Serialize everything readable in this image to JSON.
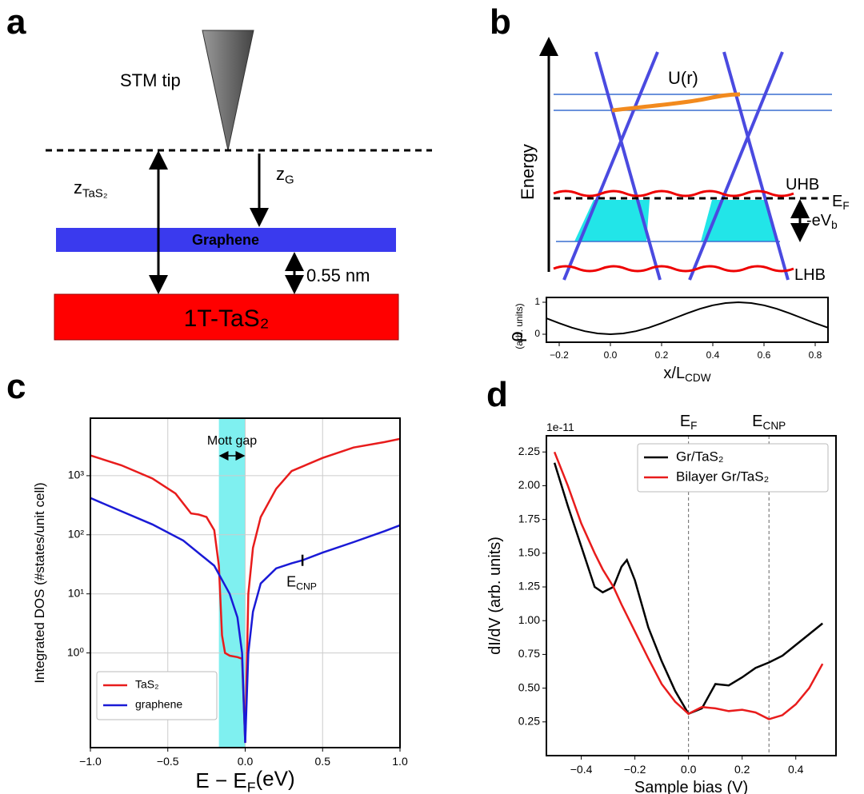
{
  "panel_a": {
    "label": "a",
    "tip": "STM tip",
    "z_tas2": [
      "z",
      "TaS₂"
    ],
    "z_g": [
      "z",
      "G"
    ],
    "graphene": "Graphene",
    "gap": "0.55 nm",
    "substrate": "1T-TaS₂"
  },
  "panel_b": {
    "label": "b",
    "potential": "U(r)",
    "energy": "Energy",
    "uhb": "UHB",
    "ef": [
      "E",
      "F"
    ],
    "bias": [
      "-eV",
      "b"
    ],
    "lhb": "LHB"
  },
  "panel_c": {
    "label": "c"
  },
  "panel_d": {
    "label": "d"
  },
  "chart_data": [
    {
      "type": "line",
      "xlabel": [
        "x/L",
        "CDW"
      ],
      "ylabel": "ρ",
      "ylabel_unit": "(arb. units)",
      "x": [
        -0.25,
        -0.2,
        -0.15,
        -0.1,
        -0.05,
        0,
        0.05,
        0.1,
        0.15,
        0.2,
        0.25,
        0.3,
        0.35,
        0.4,
        0.45,
        0.5,
        0.55,
        0.6,
        0.65,
        0.7,
        0.75,
        0.8,
        0.85
      ],
      "series": [
        {
          "color": "#000000",
          "values": [
            0.5,
            0.345,
            0.206,
            0.095,
            0.024,
            0,
            0.024,
            0.095,
            0.206,
            0.345,
            0.5,
            0.655,
            0.794,
            0.905,
            0.976,
            1,
            0.976,
            0.905,
            0.794,
            0.655,
            0.5,
            0.345,
            0.206
          ]
        }
      ],
      "xlim": [
        -0.25,
        0.85
      ],
      "ylim": [
        -0.25,
        1.15
      ],
      "xticks": [
        {
          "value": -0.2,
          "label": "−0.2"
        },
        {
          "value": 0,
          "label": "0.0"
        },
        0.2,
        0.4,
        0.6,
        0.8
      ],
      "yticks": [
        0,
        1
      ],
      "grid": false
    },
    {
      "type": "line",
      "xlabel": [
        "E − E",
        "F",
        "(eV)"
      ],
      "ylabel": "Integrated DOS  (#states/unit cell)",
      "yscale": "log",
      "grid": true,
      "xlim": [
        -1,
        1
      ],
      "ylim": [
        0.025,
        9400
      ],
      "xticks": [
        {
          "value": -1,
          "label": "−1.0"
        },
        {
          "value": -0.5,
          "label": "−0.5"
        },
        {
          "value": 0,
          "label": "0.0"
        },
        0.5,
        {
          "value": 1,
          "label": "1.0"
        }
      ],
      "yticks": [
        {
          "value": 1,
          "label": "10⁰"
        },
        {
          "value": 10,
          "label": "10¹"
        },
        {
          "value": 100,
          "label": "10²"
        },
        {
          "value": 1000,
          "label": "10³"
        }
      ],
      "shade": [
        -0.17,
        0
      ],
      "shade_color": "#7ff0f0",
      "shade_label": "Mott gap",
      "marker": {
        "x": 0.37,
        "y": 37,
        "label": [
          "E",
          "CNP"
        ]
      },
      "legend": "lower left",
      "series": [
        {
          "name": "TaS₂",
          "color": "#e81c1c",
          "x": [
            -1,
            -0.8,
            -0.6,
            -0.45,
            -0.35,
            -0.3,
            -0.25,
            -0.2,
            -0.17,
            -0.15,
            -0.13,
            -0.1,
            -0.05,
            -0.02,
            0,
            0.02,
            0.05,
            0.1,
            0.2,
            0.3,
            0.5,
            0.7,
            0.9,
            1
          ],
          "values": [
            2200,
            1500,
            900,
            500,
            230,
            220,
            200,
            120,
            30,
            2,
            1,
            0.9,
            0.85,
            0.8,
            0.03,
            10,
            60,
            200,
            600,
            1200,
            2000,
            3000,
            3700,
            4200
          ]
        },
        {
          "name": "graphene",
          "color": "#1a1ad6",
          "x": [
            -1,
            -0.8,
            -0.6,
            -0.4,
            -0.2,
            -0.1,
            -0.05,
            -0.02,
            0,
            0.02,
            0.05,
            0.1,
            0.2,
            0.3,
            0.37,
            0.5,
            0.7,
            0.9,
            1
          ],
          "values": [
            420,
            250,
            150,
            80,
            30,
            10,
            4,
            1,
            0.03,
            1,
            5,
            15,
            27,
            33,
            37,
            50,
            75,
            115,
            145
          ]
        }
      ]
    },
    {
      "type": "line",
      "xlabel": "Sample bias (V)",
      "ylabel": "dI/dV (arb. units)",
      "offset_label": "1e-11",
      "grid": false,
      "xlim": [
        -0.53,
        0.55
      ],
      "ylim": [
        0,
        2.37
      ],
      "xticks": [
        {
          "value": -0.4,
          "label": "−0.4"
        },
        {
          "value": -0.2,
          "label": "−0.2"
        },
        {
          "value": 0,
          "label": "0.0"
        },
        0.2,
        0.4
      ],
      "yticks": [
        0.25,
        {
          "value": 0.5,
          "label": "0.50"
        },
        0.75,
        {
          "value": 1,
          "label": "1.00"
        },
        1.25,
        {
          "value": 1.5,
          "label": "1.50"
        },
        1.75,
        {
          "value": 2,
          "label": "2.00"
        },
        2.25
      ],
      "vlines": [
        {
          "x": 0,
          "label": [
            "E",
            "F"
          ]
        },
        {
          "x": 0.3,
          "label": [
            "E",
            "CNP"
          ]
        }
      ],
      "legend": "upper right",
      "x": [
        -0.5,
        -0.45,
        -0.4,
        -0.35,
        -0.32,
        -0.28,
        -0.25,
        -0.23,
        -0.2,
        -0.15,
        -0.1,
        -0.05,
        0,
        0.05,
        0.1,
        0.15,
        0.2,
        0.25,
        0.3,
        0.35,
        0.4,
        0.45,
        0.5
      ],
      "series": [
        {
          "name": "Gr/TaS₂",
          "color": "#000000",
          "values": [
            2.17,
            1.85,
            1.55,
            1.25,
            1.21,
            1.25,
            1.4,
            1.45,
            1.3,
            0.95,
            0.7,
            0.48,
            0.31,
            0.35,
            0.53,
            0.52,
            0.58,
            0.65,
            0.69,
            0.74,
            0.82,
            0.9,
            0.98
          ]
        },
        {
          "name": "Bilayer Gr/TaS₂",
          "color": "#e81c1c",
          "values": [
            2.25,
            2.0,
            1.72,
            1.5,
            1.38,
            1.25,
            1.12,
            1.04,
            0.92,
            0.72,
            0.53,
            0.4,
            0.31,
            0.36,
            0.35,
            0.33,
            0.34,
            0.32,
            0.27,
            0.3,
            0.38,
            0.5,
            0.68
          ]
        }
      ]
    }
  ]
}
